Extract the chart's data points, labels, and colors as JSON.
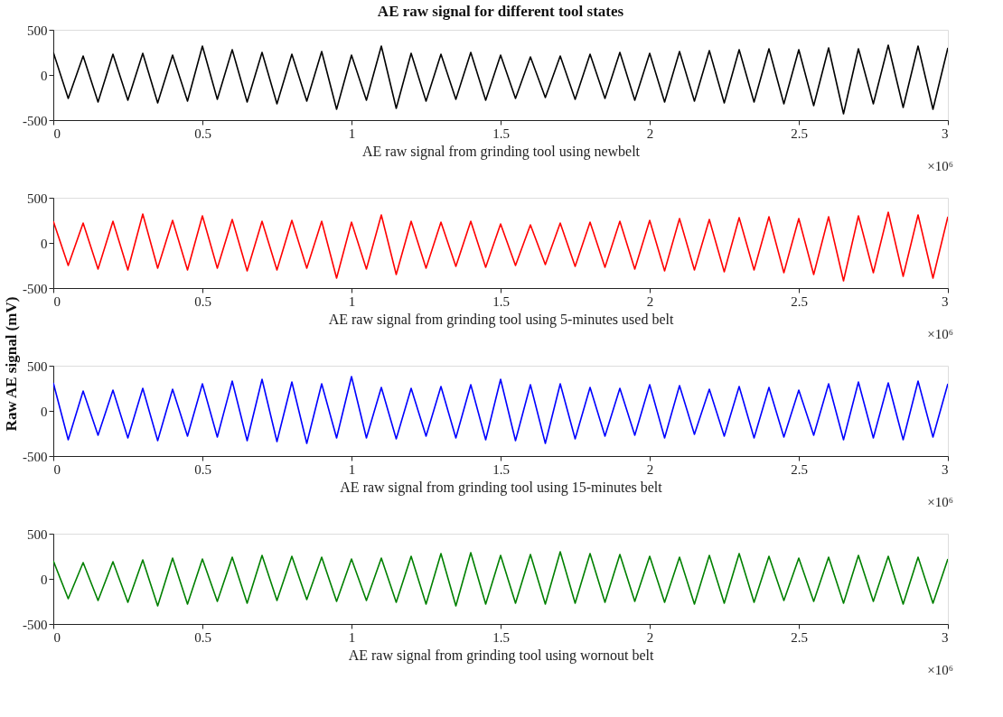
{
  "chart_data": [
    {
      "type": "line",
      "title": "AE raw signal for different tool states",
      "xlabel": "AE raw signal from grinding tool using newbelt",
      "annotations": [
        "×10⁶"
      ],
      "x": [
        0,
        0.05,
        0.1,
        0.15,
        0.2,
        0.25,
        0.3,
        0.35,
        0.4,
        0.45,
        0.5,
        0.55,
        0.6,
        0.65,
        0.7,
        0.75,
        0.8,
        0.85,
        0.9,
        0.95,
        1,
        1.05,
        1.1,
        1.15,
        1.2,
        1.25,
        1.3,
        1.35,
        1.4,
        1.45,
        1.5,
        1.55,
        1.6,
        1.65,
        1.7,
        1.75,
        1.8,
        1.85,
        1.9,
        1.95,
        2,
        2.05,
        2.1,
        2.15,
        2.2,
        2.25,
        2.3,
        2.35,
        2.4,
        2.45,
        2.5,
        2.55,
        2.6,
        2.65,
        2.7,
        2.75,
        2.8,
        2.85,
        2.9,
        2.95,
        3
      ],
      "series": [
        {
          "color": "#000000",
          "values": [
            250,
            -260,
            210,
            -300,
            230,
            -280,
            240,
            -310,
            220,
            -290,
            320,
            -270,
            280,
            -300,
            250,
            -320,
            230,
            -290,
            260,
            -380,
            220,
            -280,
            320,
            -370,
            240,
            -290,
            230,
            -270,
            250,
            -280,
            220,
            -260,
            200,
            -250,
            210,
            -270,
            230,
            -260,
            250,
            -280,
            240,
            -300,
            260,
            -290,
            270,
            -310,
            280,
            -300,
            290,
            -320,
            280,
            -340,
            300,
            -430,
            290,
            -320,
            330,
            -360,
            320,
            -380,
            300
          ]
        }
      ],
      "xlim": [
        0,
        3
      ],
      "ylim": [
        -500,
        500
      ],
      "yticks": [
        -500,
        0,
        500
      ],
      "xticks": [
        0,
        0.5,
        1,
        1.5,
        2,
        2.5,
        3
      ]
    },
    {
      "type": "line",
      "xlabel": "AE raw signal from grinding tool using 5-minutes used belt",
      "ylabel": "Raw AE signal (mV)",
      "annotations": [
        "×10⁶"
      ],
      "x": [
        0,
        0.05,
        0.1,
        0.15,
        0.2,
        0.25,
        0.3,
        0.35,
        0.4,
        0.45,
        0.5,
        0.55,
        0.6,
        0.65,
        0.7,
        0.75,
        0.8,
        0.85,
        0.9,
        0.95,
        1,
        1.05,
        1.1,
        1.15,
        1.2,
        1.25,
        1.3,
        1.35,
        1.4,
        1.45,
        1.5,
        1.55,
        1.6,
        1.65,
        1.7,
        1.75,
        1.8,
        1.85,
        1.9,
        1.95,
        2,
        2.05,
        2.1,
        2.15,
        2.2,
        2.25,
        2.3,
        2.35,
        2.4,
        2.45,
        2.5,
        2.55,
        2.6,
        2.65,
        2.7,
        2.75,
        2.8,
        2.85,
        2.9,
        2.95,
        3
      ],
      "series": [
        {
          "color": "#ff0000",
          "values": [
            240,
            -250,
            220,
            -290,
            240,
            -300,
            320,
            -280,
            250,
            -300,
            300,
            -280,
            260,
            -310,
            240,
            -300,
            250,
            -280,
            240,
            -390,
            230,
            -290,
            310,
            -350,
            240,
            -280,
            230,
            -260,
            240,
            -270,
            210,
            -250,
            200,
            -240,
            220,
            -260,
            230,
            -270,
            240,
            -290,
            250,
            -310,
            270,
            -300,
            260,
            -320,
            280,
            -300,
            290,
            -330,
            270,
            -350,
            290,
            -420,
            300,
            -330,
            340,
            -370,
            310,
            -390,
            290
          ]
        }
      ],
      "xlim": [
        0,
        3
      ],
      "ylim": [
        -500,
        500
      ],
      "yticks": [
        -500,
        0,
        500
      ],
      "xticks": [
        0,
        0.5,
        1,
        1.5,
        2,
        2.5,
        3
      ]
    },
    {
      "type": "line",
      "xlabel": "AE raw signal from grinding tool using 15-minutes belt",
      "annotations": [
        "×10⁶"
      ],
      "x": [
        0,
        0.05,
        0.1,
        0.15,
        0.2,
        0.25,
        0.3,
        0.35,
        0.4,
        0.45,
        0.5,
        0.55,
        0.6,
        0.65,
        0.7,
        0.75,
        0.8,
        0.85,
        0.9,
        0.95,
        1,
        1.05,
        1.1,
        1.15,
        1.2,
        1.25,
        1.3,
        1.35,
        1.4,
        1.45,
        1.5,
        1.55,
        1.6,
        1.65,
        1.7,
        1.75,
        1.8,
        1.85,
        1.9,
        1.95,
        2,
        2.05,
        2.1,
        2.15,
        2.2,
        2.25,
        2.3,
        2.35,
        2.4,
        2.45,
        2.5,
        2.55,
        2.6,
        2.65,
        2.7,
        2.75,
        2.8,
        2.85,
        2.9,
        2.95,
        3
      ],
      "series": [
        {
          "color": "#0000ff",
          "values": [
            310,
            -320,
            220,
            -270,
            230,
            -300,
            250,
            -330,
            240,
            -280,
            300,
            -290,
            330,
            -330,
            350,
            -340,
            320,
            -360,
            300,
            -300,
            380,
            -300,
            260,
            -310,
            250,
            -280,
            270,
            -300,
            290,
            -320,
            350,
            -330,
            290,
            -360,
            300,
            -310,
            260,
            -280,
            250,
            -270,
            290,
            -300,
            280,
            -260,
            240,
            -280,
            270,
            -300,
            260,
            -290,
            230,
            -270,
            300,
            -320,
            320,
            -300,
            310,
            -320,
            330,
            -290,
            300
          ]
        }
      ],
      "xlim": [
        0,
        3
      ],
      "ylim": [
        -500,
        500
      ],
      "yticks": [
        -500,
        0,
        500
      ],
      "xticks": [
        0,
        0.5,
        1,
        1.5,
        2,
        2.5,
        3
      ]
    },
    {
      "type": "line",
      "xlabel": "AE raw signal from grinding tool using wornout belt",
      "annotations": [
        "×10⁶"
      ],
      "x": [
        0,
        0.05,
        0.1,
        0.15,
        0.2,
        0.25,
        0.3,
        0.35,
        0.4,
        0.45,
        0.5,
        0.55,
        0.6,
        0.65,
        0.7,
        0.75,
        0.8,
        0.85,
        0.9,
        0.95,
        1,
        1.05,
        1.1,
        1.15,
        1.2,
        1.25,
        1.3,
        1.35,
        1.4,
        1.45,
        1.5,
        1.55,
        1.6,
        1.65,
        1.7,
        1.75,
        1.8,
        1.85,
        1.9,
        1.95,
        2,
        2.05,
        2.1,
        2.15,
        2.2,
        2.25,
        2.3,
        2.35,
        2.4,
        2.45,
        2.5,
        2.55,
        2.6,
        2.65,
        2.7,
        2.75,
        2.8,
        2.85,
        2.9,
        2.95,
        3
      ],
      "series": [
        {
          "color": "#008000",
          "values": [
            200,
            -220,
            180,
            -240,
            190,
            -260,
            210,
            -300,
            230,
            -280,
            220,
            -250,
            240,
            -270,
            260,
            -240,
            250,
            -230,
            240,
            -250,
            220,
            -240,
            230,
            -260,
            250,
            -280,
            280,
            -300,
            290,
            -280,
            260,
            -270,
            270,
            -280,
            300,
            -270,
            280,
            -260,
            270,
            -250,
            250,
            -260,
            240,
            -280,
            260,
            -270,
            280,
            -260,
            250,
            -240,
            230,
            -250,
            240,
            -270,
            260,
            -250,
            250,
            -280,
            240,
            -270,
            220
          ]
        }
      ],
      "xlim": [
        0,
        3
      ],
      "ylim": [
        -500,
        500
      ],
      "yticks": [
        -500,
        0,
        500
      ],
      "xticks": [
        0,
        0.5,
        1,
        1.5,
        2,
        2.5,
        3
      ]
    }
  ]
}
